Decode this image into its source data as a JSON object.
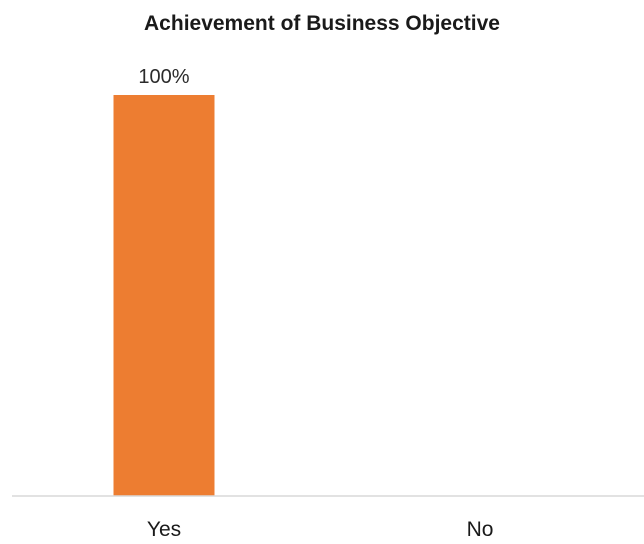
{
  "chart_data": {
    "type": "bar",
    "title": "Achievement of Business Objective",
    "categories": [
      "Yes",
      "No"
    ],
    "values": [
      100,
      0
    ],
    "data_labels": [
      "100%",
      ""
    ],
    "unit": "%",
    "ylim": [
      0,
      100
    ],
    "grid": false,
    "legend": "none",
    "bar_color": "#ED7D31",
    "axis_color": "#D9D9D9"
  }
}
